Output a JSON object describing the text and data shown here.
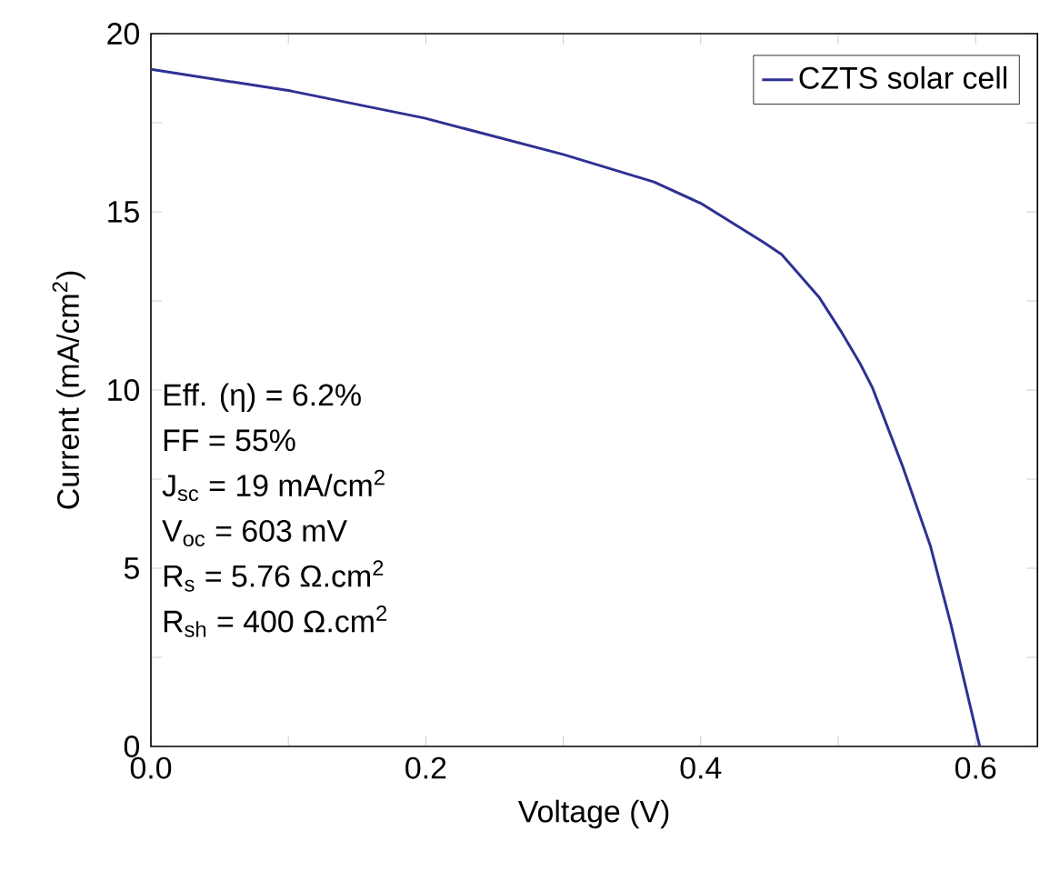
{
  "chart_data": {
    "type": "line",
    "xlabel": "Voltage (V)",
    "ylabel": "Current (mA/cm$^{2}$)",
    "x": [
      0.0,
      0.102,
      0.199,
      0.3,
      0.366,
      0.4,
      0.446,
      0.459,
      0.486,
      0.503,
      0.516,
      0.525,
      0.547,
      0.567,
      0.582,
      0.603
    ],
    "series": [
      {
        "name": "CZTS solar cell",
        "color": "#2e3192",
        "values": [
          19.0,
          18.39,
          17.63,
          16.61,
          15.84,
          15.24,
          14.14,
          13.8,
          12.61,
          11.59,
          10.74,
          10.06,
          7.85,
          5.64,
          3.43,
          0.0
        ]
      }
    ],
    "xlim": [
      0,
      0.645
    ],
    "ylim": [
      0,
      20
    ],
    "xticks": [
      {
        "value": 0,
        "label": "0.0"
      },
      {
        "value": 0.1,
        "label": null
      },
      {
        "value": 0.2,
        "label": "0.2"
      },
      {
        "value": 0.3,
        "label": null
      },
      {
        "value": 0.4,
        "label": "0.4"
      },
      {
        "value": 0.5,
        "label": null
      },
      {
        "value": 0.6,
        "label": "0.6"
      }
    ],
    "yticks": [
      0,
      {
        "value": 2.5,
        "label": null
      },
      5,
      {
        "value": 7.5,
        "label": null
      },
      10,
      {
        "value": 12.5,
        "label": null
      },
      15,
      {
        "value": 17.5,
        "label": null
      },
      20
    ],
    "legend": "top right",
    "grid": false,
    "marker": "none",
    "line_style": "solid",
    "annotations": [
      "Eff. (η) = 6.2%",
      "FF = 55%",
      "J$_{sc}$ = 19 mA/cm$^{2}$",
      "V$_{oc}$ = 603 mV",
      "R$_{s}$ = 5.76 Ω.cm$^{2}$",
      "R$_{sh}$ = 400 Ω.cm$^{2}$"
    ]
  }
}
